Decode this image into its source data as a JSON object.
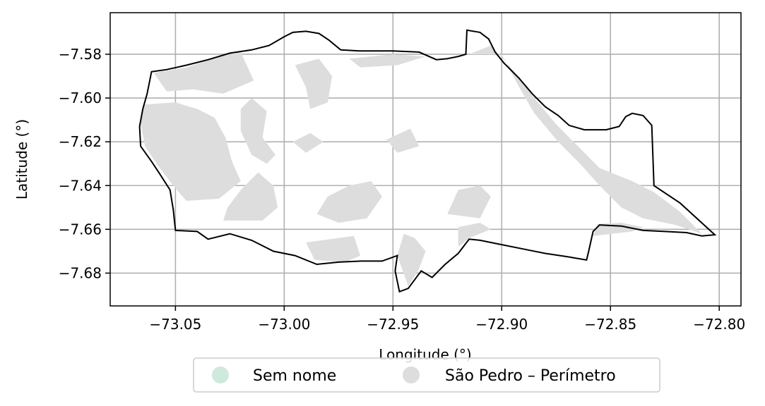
{
  "axes": {
    "xlabel": "Longitude (°)",
    "ylabel": "Latitude (°)",
    "xlim": [
      -73.08,
      -72.79
    ],
    "ylim": [
      -7.695,
      -7.561
    ],
    "xticks": [
      {
        "value": -73.05,
        "label": "−73.05"
      },
      {
        "value": -73.0,
        "label": "−73.00"
      },
      {
        "value": -72.95,
        "label": "−72.95"
      },
      {
        "value": -72.9,
        "label": "−72.90"
      },
      {
        "value": -72.85,
        "label": "−72.85"
      },
      {
        "value": -72.8,
        "label": "−72.80"
      }
    ],
    "yticks": [
      {
        "value": -7.58,
        "label": "−7.58"
      },
      {
        "value": -7.6,
        "label": "−7.60"
      },
      {
        "value": -7.62,
        "label": "−7.62"
      },
      {
        "value": -7.64,
        "label": "−7.64"
      },
      {
        "value": -7.66,
        "label": "−7.66"
      },
      {
        "value": -7.68,
        "label": "−7.68"
      }
    ],
    "grid": true
  },
  "legend": {
    "placement": "bottom-center",
    "items": [
      {
        "label": "Sem nome",
        "color": "#cfe9dc"
      },
      {
        "label": "São Pedro – Perímetro",
        "color": "#dddddd"
      }
    ]
  },
  "colors": {
    "fill": "#dddddd",
    "outline": "#000000",
    "grid": "#b0b0b0"
  },
  "perimeter": [
    [
      -73.0665,
      -7.613
    ],
    [
      -73.065,
      -7.605
    ],
    [
      -73.063,
      -7.598
    ],
    [
      -73.061,
      -7.588
    ],
    [
      -73.054,
      -7.587
    ],
    [
      -73.045,
      -7.585
    ],
    [
      -73.035,
      -7.5825
    ],
    [
      -73.025,
      -7.5795
    ],
    [
      -73.015,
      -7.578
    ],
    [
      -73.007,
      -7.576
    ],
    [
      -73.0,
      -7.572
    ],
    [
      -72.996,
      -7.57
    ],
    [
      -72.99,
      -7.5695
    ],
    [
      -72.984,
      -7.5705
    ],
    [
      -72.9795,
      -7.5735
    ],
    [
      -72.974,
      -7.578
    ],
    [
      -72.965,
      -7.5785
    ],
    [
      -72.95,
      -7.5785
    ],
    [
      -72.938,
      -7.579
    ],
    [
      -72.93,
      -7.5825
    ],
    [
      -72.925,
      -7.582
    ],
    [
      -72.92,
      -7.581
    ],
    [
      -72.9165,
      -7.58
    ],
    [
      -72.916,
      -7.569
    ],
    [
      -72.91,
      -7.57
    ],
    [
      -72.906,
      -7.573
    ],
    [
      -72.903,
      -7.579
    ],
    [
      -72.899,
      -7.584
    ],
    [
      -72.892,
      -7.591
    ],
    [
      -72.886,
      -7.598
    ],
    [
      -72.88,
      -7.604
    ],
    [
      -72.874,
      -7.608
    ],
    [
      -72.869,
      -7.6125
    ],
    [
      -72.862,
      -7.6145
    ],
    [
      -72.852,
      -7.6145
    ],
    [
      -72.846,
      -7.613
    ],
    [
      -72.843,
      -7.6085
    ],
    [
      -72.84,
      -7.607
    ],
    [
      -72.835,
      -7.608
    ],
    [
      -72.831,
      -7.6125
    ],
    [
      -72.83,
      -7.64
    ],
    [
      -72.818,
      -7.648
    ],
    [
      -72.802,
      -7.6625
    ],
    [
      -72.808,
      -7.663
    ],
    [
      -72.815,
      -7.6615
    ],
    [
      -72.825,
      -7.661
    ],
    [
      -72.835,
      -7.6605
    ],
    [
      -72.845,
      -7.6585
    ],
    [
      -72.855,
      -7.658
    ],
    [
      -72.858,
      -7.661
    ],
    [
      -72.86,
      -7.67
    ],
    [
      -72.861,
      -7.674
    ],
    [
      -72.87,
      -7.6725
    ],
    [
      -72.88,
      -7.671
    ],
    [
      -72.89,
      -7.669
    ],
    [
      -72.9,
      -7.667
    ],
    [
      -72.91,
      -7.665
    ],
    [
      -72.915,
      -7.6645
    ],
    [
      -72.92,
      -7.671
    ],
    [
      -72.926,
      -7.676
    ],
    [
      -72.932,
      -7.682
    ],
    [
      -72.937,
      -7.679
    ],
    [
      -72.943,
      -7.687
    ],
    [
      -72.947,
      -7.6885
    ],
    [
      -72.949,
      -7.679
    ],
    [
      -72.948,
      -7.672
    ],
    [
      -72.955,
      -7.6745
    ],
    [
      -72.965,
      -7.6745
    ],
    [
      -72.975,
      -7.675
    ],
    [
      -72.985,
      -7.676
    ],
    [
      -72.995,
      -7.672
    ],
    [
      -73.005,
      -7.67
    ],
    [
      -73.015,
      -7.665
    ],
    [
      -73.025,
      -7.662
    ],
    [
      -73.035,
      -7.6645
    ],
    [
      -73.04,
      -7.661
    ],
    [
      -73.05,
      -7.6605
    ],
    [
      -73.051,
      -7.651
    ],
    [
      -73.0525,
      -7.642
    ],
    [
      -73.057,
      -7.635
    ],
    [
      -73.061,
      -7.629
    ],
    [
      -73.066,
      -7.622
    ],
    [
      -73.0665,
      -7.613
    ]
  ],
  "features": [
    [
      [
        -73.06,
        -7.5885
      ],
      [
        -73.045,
        -7.586
      ],
      [
        -73.03,
        -7.581
      ],
      [
        -73.02,
        -7.579
      ],
      [
        -73.014,
        -7.592
      ],
      [
        -73.028,
        -7.598
      ],
      [
        -73.042,
        -7.596
      ],
      [
        -73.054,
        -7.597
      ]
    ],
    [
      [
        -73.065,
        -7.603
      ],
      [
        -73.05,
        -7.602
      ],
      [
        -73.04,
        -7.605
      ],
      [
        -73.032,
        -7.609
      ],
      [
        -73.027,
        -7.618
      ],
      [
        -73.024,
        -7.629
      ],
      [
        -73.02,
        -7.638
      ],
      [
        -73.03,
        -7.646
      ],
      [
        -73.045,
        -7.647
      ],
      [
        -73.051,
        -7.64
      ],
      [
        -73.058,
        -7.631
      ],
      [
        -73.064,
        -7.622
      ],
      [
        -73.066,
        -7.612
      ]
    ],
    [
      [
        -73.015,
        -7.6
      ],
      [
        -73.008,
        -7.606
      ],
      [
        -73.01,
        -7.618
      ],
      [
        -73.004,
        -7.626
      ],
      [
        -73.008,
        -7.63
      ],
      [
        -73.015,
        -7.626
      ],
      [
        -73.02,
        -7.615
      ],
      [
        -73.02,
        -7.605
      ]
    ],
    [
      [
        -72.995,
        -7.585
      ],
      [
        -72.99,
        -7.595
      ],
      [
        -72.988,
        -7.605
      ],
      [
        -72.98,
        -7.602
      ],
      [
        -72.978,
        -7.59
      ],
      [
        -72.984,
        -7.582
      ]
    ],
    [
      [
        -72.942,
        -7.614
      ],
      [
        -72.938,
        -7.622
      ],
      [
        -72.948,
        -7.625
      ],
      [
        -72.953,
        -7.619
      ]
    ],
    [
      [
        -73.028,
        -7.656
      ],
      [
        -73.01,
        -7.656
      ],
      [
        -73.003,
        -7.65
      ],
      [
        -73.005,
        -7.64
      ],
      [
        -73.012,
        -7.634
      ],
      [
        -73.02,
        -7.642
      ],
      [
        -73.026,
        -7.65
      ]
    ],
    [
      [
        -72.98,
        -7.645
      ],
      [
        -72.97,
        -7.64
      ],
      [
        -72.96,
        -7.638
      ],
      [
        -72.955,
        -7.645
      ],
      [
        -72.962,
        -7.655
      ],
      [
        -72.975,
        -7.657
      ],
      [
        -72.985,
        -7.653
      ]
    ],
    [
      [
        -72.968,
        -7.663
      ],
      [
        -72.965,
        -7.672
      ],
      [
        -72.972,
        -7.675
      ],
      [
        -72.986,
        -7.674
      ],
      [
        -72.99,
        -7.666
      ]
    ],
    [
      [
        -72.948,
        -7.672
      ],
      [
        -72.943,
        -7.686
      ],
      [
        -72.938,
        -7.678
      ],
      [
        -72.935,
        -7.67
      ],
      [
        -72.94,
        -7.664
      ],
      [
        -72.945,
        -7.662
      ]
    ],
    [
      [
        -72.92,
        -7.668
      ],
      [
        -72.915,
        -7.664
      ],
      [
        -72.905,
        -7.66
      ],
      [
        -72.91,
        -7.657
      ],
      [
        -72.92,
        -7.659
      ]
    ],
    [
      [
        -72.92,
        -7.642
      ],
      [
        -72.91,
        -7.64
      ],
      [
        -72.905,
        -7.645
      ],
      [
        -72.91,
        -7.655
      ],
      [
        -72.925,
        -7.653
      ]
    ],
    [
      [
        -72.915,
        -7.58
      ],
      [
        -72.9,
        -7.58
      ],
      [
        -72.892,
        -7.595
      ],
      [
        -72.885,
        -7.607
      ],
      [
        -72.874,
        -7.62
      ],
      [
        -72.864,
        -7.63
      ],
      [
        -72.855,
        -7.64
      ],
      [
        -72.845,
        -7.65
      ],
      [
        -72.835,
        -7.655
      ],
      [
        -72.82,
        -7.658
      ],
      [
        -72.808,
        -7.662
      ],
      [
        -72.818,
        -7.652
      ],
      [
        -72.83,
        -7.643
      ],
      [
        -72.84,
        -7.638
      ],
      [
        -72.855,
        -7.632
      ],
      [
        -72.865,
        -7.622
      ],
      [
        -72.875,
        -7.612
      ],
      [
        -72.885,
        -7.6
      ],
      [
        -72.895,
        -7.587
      ],
      [
        -72.905,
        -7.576
      ]
    ],
    [
      [
        -72.858,
        -7.663
      ],
      [
        -72.84,
        -7.661
      ],
      [
        -72.835,
        -7.659
      ],
      [
        -72.845,
        -7.657
      ],
      [
        -72.856,
        -7.6575
      ]
    ],
    [
      [
        -72.97,
        -7.582
      ],
      [
        -72.95,
        -7.58
      ],
      [
        -72.935,
        -7.581
      ],
      [
        -72.948,
        -7.585
      ],
      [
        -72.965,
        -7.586
      ]
    ],
    [
      [
        -72.988,
        -7.616
      ],
      [
        -72.982,
        -7.62
      ],
      [
        -72.99,
        -7.625
      ],
      [
        -72.996,
        -7.62
      ]
    ]
  ]
}
